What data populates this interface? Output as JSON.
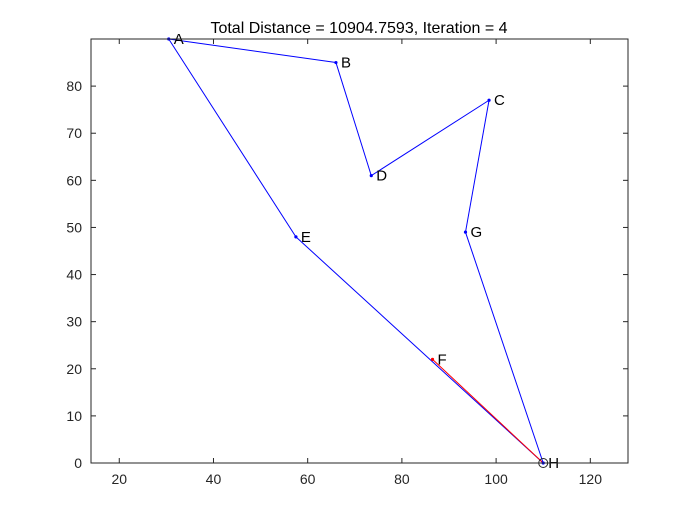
{
  "chart_data": {
    "type": "line",
    "title": "Total Distance = 10904.7593, Iteration = 4",
    "xlabel": "",
    "ylabel": "",
    "xlim": [
      14,
      128
    ],
    "ylim": [
      0,
      90
    ],
    "xticks": [
      20,
      40,
      60,
      80,
      100,
      120
    ],
    "yticks": [
      0,
      10,
      20,
      30,
      40,
      50,
      60,
      70,
      80
    ],
    "grid": false,
    "points": [
      {
        "label": "A",
        "x": 30.5,
        "y": 90
      },
      {
        "label": "B",
        "x": 66,
        "y": 85
      },
      {
        "label": "C",
        "x": 98.5,
        "y": 77
      },
      {
        "label": "D",
        "x": 73.5,
        "y": 61
      },
      {
        "label": "E",
        "x": 57.5,
        "y": 48
      },
      {
        "label": "F",
        "x": 86.5,
        "y": 22
      },
      {
        "label": "G",
        "x": 93.5,
        "y": 49
      },
      {
        "label": "H",
        "x": 110,
        "y": 0
      }
    ],
    "series": [
      {
        "color": "#0000ff",
        "route": [
          "A",
          "B",
          "D",
          "C",
          "G",
          "H",
          "E",
          "A"
        ]
      },
      {
        "color": "#ff0000",
        "route": [
          "F",
          "H"
        ]
      }
    ],
    "start_marker": "H",
    "colors": {
      "route": "#0000ff",
      "highlight": "#ff0000",
      "axis": "#262626"
    }
  }
}
